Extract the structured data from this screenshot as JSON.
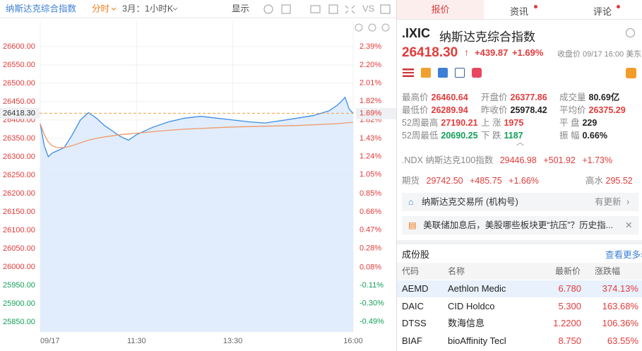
{
  "toolbar": {
    "title": "纳斯达克综合指数",
    "mode": "分时",
    "period": "3月：1小时K",
    "display": "显示",
    "vs": "VS"
  },
  "chart": {
    "type": "line",
    "x": [
      0,
      5,
      10,
      15,
      20,
      30,
      40,
      50,
      60,
      70,
      80,
      90,
      100,
      110,
      120,
      140,
      160,
      180,
      200,
      220,
      240,
      260,
      280,
      300,
      320,
      340,
      360,
      370,
      375,
      380,
      385,
      390
    ],
    "xlim": [
      0,
      390
    ],
    "xticks": [
      {
        "value": 0,
        "label": "09/17"
      },
      {
        "value": 120,
        "label": "11:30"
      },
      {
        "value": 240,
        "label": "13:30"
      },
      {
        "value": 390,
        "label": "16:00"
      }
    ],
    "series": [
      {
        "color": "#3b8de6",
        "values": [
          26390,
          26330,
          26300,
          26310,
          26315,
          26325,
          26360,
          26400,
          26420,
          26405,
          26385,
          26370,
          26355,
          26345,
          26360,
          26380,
          26395,
          26405,
          26410,
          26405,
          26400,
          26395,
          26392,
          26398,
          26405,
          26412,
          26425,
          26440,
          26450,
          26462,
          26430,
          26418.3
        ]
      },
      {
        "color": "#ef9a6a",
        "values": [
          26390,
          26360,
          26340,
          26330,
          26325,
          26325,
          26330,
          26338,
          26345,
          26350,
          26354,
          26357,
          26360,
          26362,
          26364,
          26368,
          26372,
          26375,
          26377,
          26379,
          26381,
          26382,
          26383,
          26384,
          26385,
          26387,
          26389,
          26390,
          26391,
          26392,
          26393,
          26393
        ]
      }
    ],
    "ylim": [
      25823,
      26669
    ],
    "yticks": [
      {
        "value": 26600,
        "label": "26600.00"
      },
      {
        "value": 26550,
        "label": "26550.00"
      },
      {
        "value": 26500,
        "label": "26500.00"
      },
      {
        "value": 26450,
        "label": "26450.00"
      },
      {
        "value": 26400,
        "label": "26400.00"
      },
      {
        "value": 26350,
        "label": "26350.00"
      },
      {
        "value": 26300,
        "label": "26300.00"
      },
      {
        "value": 26250,
        "label": "26250.00"
      },
      {
        "value": 26200,
        "label": "26200.00"
      },
      {
        "value": 26150,
        "label": "26150.00"
      },
      {
        "value": 26100,
        "label": "26100.00"
      },
      {
        "value": 26050,
        "label": "26050.00"
      },
      {
        "value": 26000,
        "label": "26000.00"
      },
      {
        "value": 25950,
        "label": "25950.00"
      },
      {
        "value": 25900,
        "label": "25900.00"
      },
      {
        "value": 25850,
        "label": "25850.00"
      }
    ],
    "y2lim": [
      -0.598,
      2.658
    ],
    "y2ticks": [
      {
        "value": 2.39,
        "label": "2.39%"
      },
      {
        "value": 2.2,
        "label": "2.20%"
      },
      {
        "value": 2.01,
        "label": "2.01%"
      },
      {
        "value": 1.82,
        "label": "1.82%"
      },
      {
        "value": 1.62,
        "label": "1.62%"
      },
      {
        "value": 1.43,
        "label": "1.43%"
      },
      {
        "value": 1.24,
        "label": "1.24%"
      },
      {
        "value": 1.05,
        "label": "1.05%"
      },
      {
        "value": 0.85,
        "label": "0.85%"
      },
      {
        "value": 0.66,
        "label": "0.66%"
      },
      {
        "value": 0.47,
        "label": "0.47%"
      },
      {
        "value": 0.28,
        "label": "0.28%"
      },
      {
        "value": 0.08,
        "label": "0.08%"
      },
      {
        "value": -0.11,
        "label": "-0.11%"
      },
      {
        "value": -0.3,
        "label": "-0.30%"
      },
      {
        "value": -0.49,
        "label": "-0.49%"
      }
    ],
    "current": {
      "value": 26418.3,
      "label": "26418.30",
      "pct": {
        "value": 1.69,
        "label": "1.69%"
      }
    }
  },
  "tabs": [
    "报价",
    "资讯",
    "评论"
  ],
  "quote": {
    "symbol": ".IXIC",
    "name": "纳斯达克综合指数",
    "price": "26418.30",
    "change": "+439.87",
    "change_pct": "+1.69%",
    "status": "收盘价 09/17 16:00 美东"
  },
  "stats": [
    [
      {
        "label": "最高价",
        "value": "26460.64"
      },
      {
        "label": "开盘价",
        "value": "26377.86"
      },
      {
        "label": "成交量",
        "value": "80.69亿"
      }
    ],
    [
      {
        "label": "最低价",
        "value": "26289.94"
      },
      {
        "label": "昨收价",
        "value": "25978.42"
      },
      {
        "label": "平均价",
        "value": "26375.29"
      }
    ],
    [
      {
        "label": "52周最高",
        "value": "27190.21"
      },
      {
        "label": "上 涨",
        "value": "1975"
      },
      {
        "label": "平 盘",
        "value": "229"
      }
    ],
    [
      {
        "label": "52周最低",
        "value": "20690.25"
      },
      {
        "label": "下 跌",
        "value": "1187"
      },
      {
        "label": "振 幅",
        "value": "0.66%"
      }
    ]
  ],
  "related": {
    "symbol": ".NDX",
    "name": "纳斯达克100指数",
    "price": "29446.98",
    "change": "+501.92",
    "pct": "+1.73%"
  },
  "futures": {
    "label": "期货",
    "price": "29742.50",
    "change": "+485.75",
    "pct": "+1.66%",
    "premium_label": "高水",
    "premium": "295.52"
  },
  "notice": {
    "text": "纳斯达克交易所 (机构号)",
    "action": "有更新"
  },
  "news": {
    "text": "美联储加息后，美股哪些板块更“抗压”？历史指..."
  },
  "constituents": {
    "title": "成份股",
    "more": "查看更多",
    "columns": [
      "代码",
      "名称",
      "最新价",
      "涨跌幅"
    ],
    "rows": [
      [
        "AEMD",
        "Aethlon Medic",
        "6.780",
        "374.13%"
      ],
      [
        "DAIC",
        "CID Holdco",
        "5.300",
        "163.68%"
      ],
      [
        "DTSS",
        "数海信息",
        "1.2200",
        "106.36%"
      ],
      [
        "BIAF",
        "bioAffinity Tecl",
        "8.750",
        "63.55%"
      ]
    ]
  }
}
